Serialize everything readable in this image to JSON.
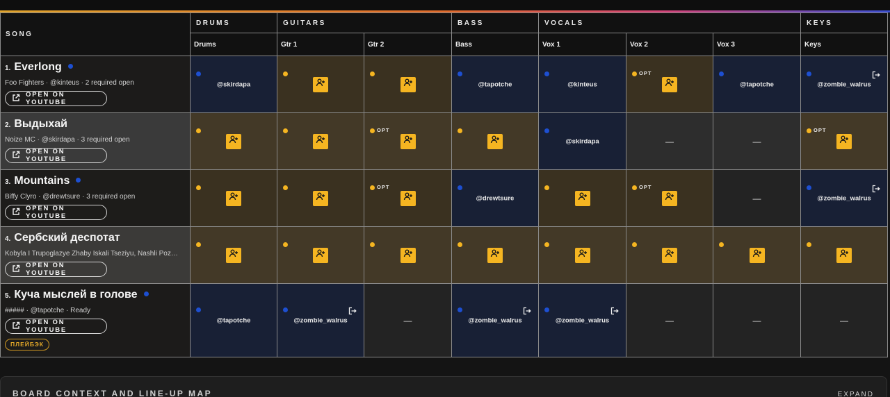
{
  "header": {
    "song_label": "SONG",
    "groups": [
      "DRUMS",
      "GUITARS",
      "BASS",
      "VOCALS",
      "KEYS"
    ],
    "parts": [
      "Drums",
      "Gtr 1",
      "Gtr 2",
      "Bass",
      "Vox 1",
      "Vox 2",
      "Vox 3",
      "Keys"
    ]
  },
  "open_on_youtube_label": "OPEN ON YOUTUBE",
  "opt_label": "OPT",
  "dash": "—",
  "songs": [
    {
      "number": "1.",
      "title": "Everlong",
      "meta": "Foo Fighters · @kinteus · 2 required open",
      "slots": [
        {
          "state": "filled",
          "handle": "@skirdapa"
        },
        {
          "state": "open"
        },
        {
          "state": "open"
        },
        {
          "state": "filled",
          "handle": "@tapotche"
        },
        {
          "state": "filled",
          "handle": "@kinteus"
        },
        {
          "state": "open",
          "optional": true
        },
        {
          "state": "filled",
          "handle": "@tapotche"
        },
        {
          "state": "filled",
          "handle": "@zombie_walrus",
          "leave": true
        }
      ]
    },
    {
      "number": "2.",
      "title": "Выдыхай",
      "meta": "Noize MC · @skirdapa · 3 required open",
      "slots": [
        {
          "state": "open"
        },
        {
          "state": "open"
        },
        {
          "state": "open",
          "optional": true
        },
        {
          "state": "open"
        },
        {
          "state": "filled",
          "handle": "@skirdapa"
        },
        {
          "state": "empty"
        },
        {
          "state": "empty"
        },
        {
          "state": "open",
          "optional": true
        }
      ]
    },
    {
      "number": "3.",
      "title": "Mountains",
      "meta": "Biffy Clyro · @drewtsure · 3 required open",
      "slots": [
        {
          "state": "open"
        },
        {
          "state": "open"
        },
        {
          "state": "open",
          "optional": true
        },
        {
          "state": "filled",
          "handle": "@drewtsure"
        },
        {
          "state": "open"
        },
        {
          "state": "open",
          "optional": true
        },
        {
          "state": "empty"
        },
        {
          "state": "filled",
          "handle": "@zombie_walrus",
          "leave": true
        }
      ]
    },
    {
      "number": "4.",
      "title": "Сербский деспотат",
      "meta": "Kobyla I Trupoglazye Zhaby Iskali Tseziyu, Nashli Poz…",
      "slots": [
        {
          "state": "open"
        },
        {
          "state": "open"
        },
        {
          "state": "open"
        },
        {
          "state": "open"
        },
        {
          "state": "open"
        },
        {
          "state": "open"
        },
        {
          "state": "open"
        },
        {
          "state": "open"
        }
      ]
    },
    {
      "number": "5.",
      "title": "Куча мыслей в голове",
      "meta": "##### · @tapotche · Ready",
      "badge": "ПЛЕЙБЭК",
      "slots": [
        {
          "state": "filled",
          "handle": "@tapotche"
        },
        {
          "state": "filled",
          "handle": "@zombie_walrus",
          "leave": true
        },
        {
          "state": "empty"
        },
        {
          "state": "filled",
          "handle": "@zombie_walrus",
          "leave": true
        },
        {
          "state": "filled",
          "handle": "@zombie_walrus",
          "leave": true
        },
        {
          "state": "empty"
        },
        {
          "state": "empty"
        },
        {
          "state": "empty"
        }
      ]
    }
  ],
  "footer": {
    "title": "BOARD CONTEXT AND LINE-UP MAP",
    "expand_label": "EXPAND"
  },
  "colors": {
    "open_dot": "#f5b521",
    "filled_dot": "#1d4fd1",
    "join_button": "#f5b521"
  },
  "icons": {
    "join": "user-plus-icon",
    "leave": "leave-icon",
    "youtube": "external-link-icon"
  }
}
